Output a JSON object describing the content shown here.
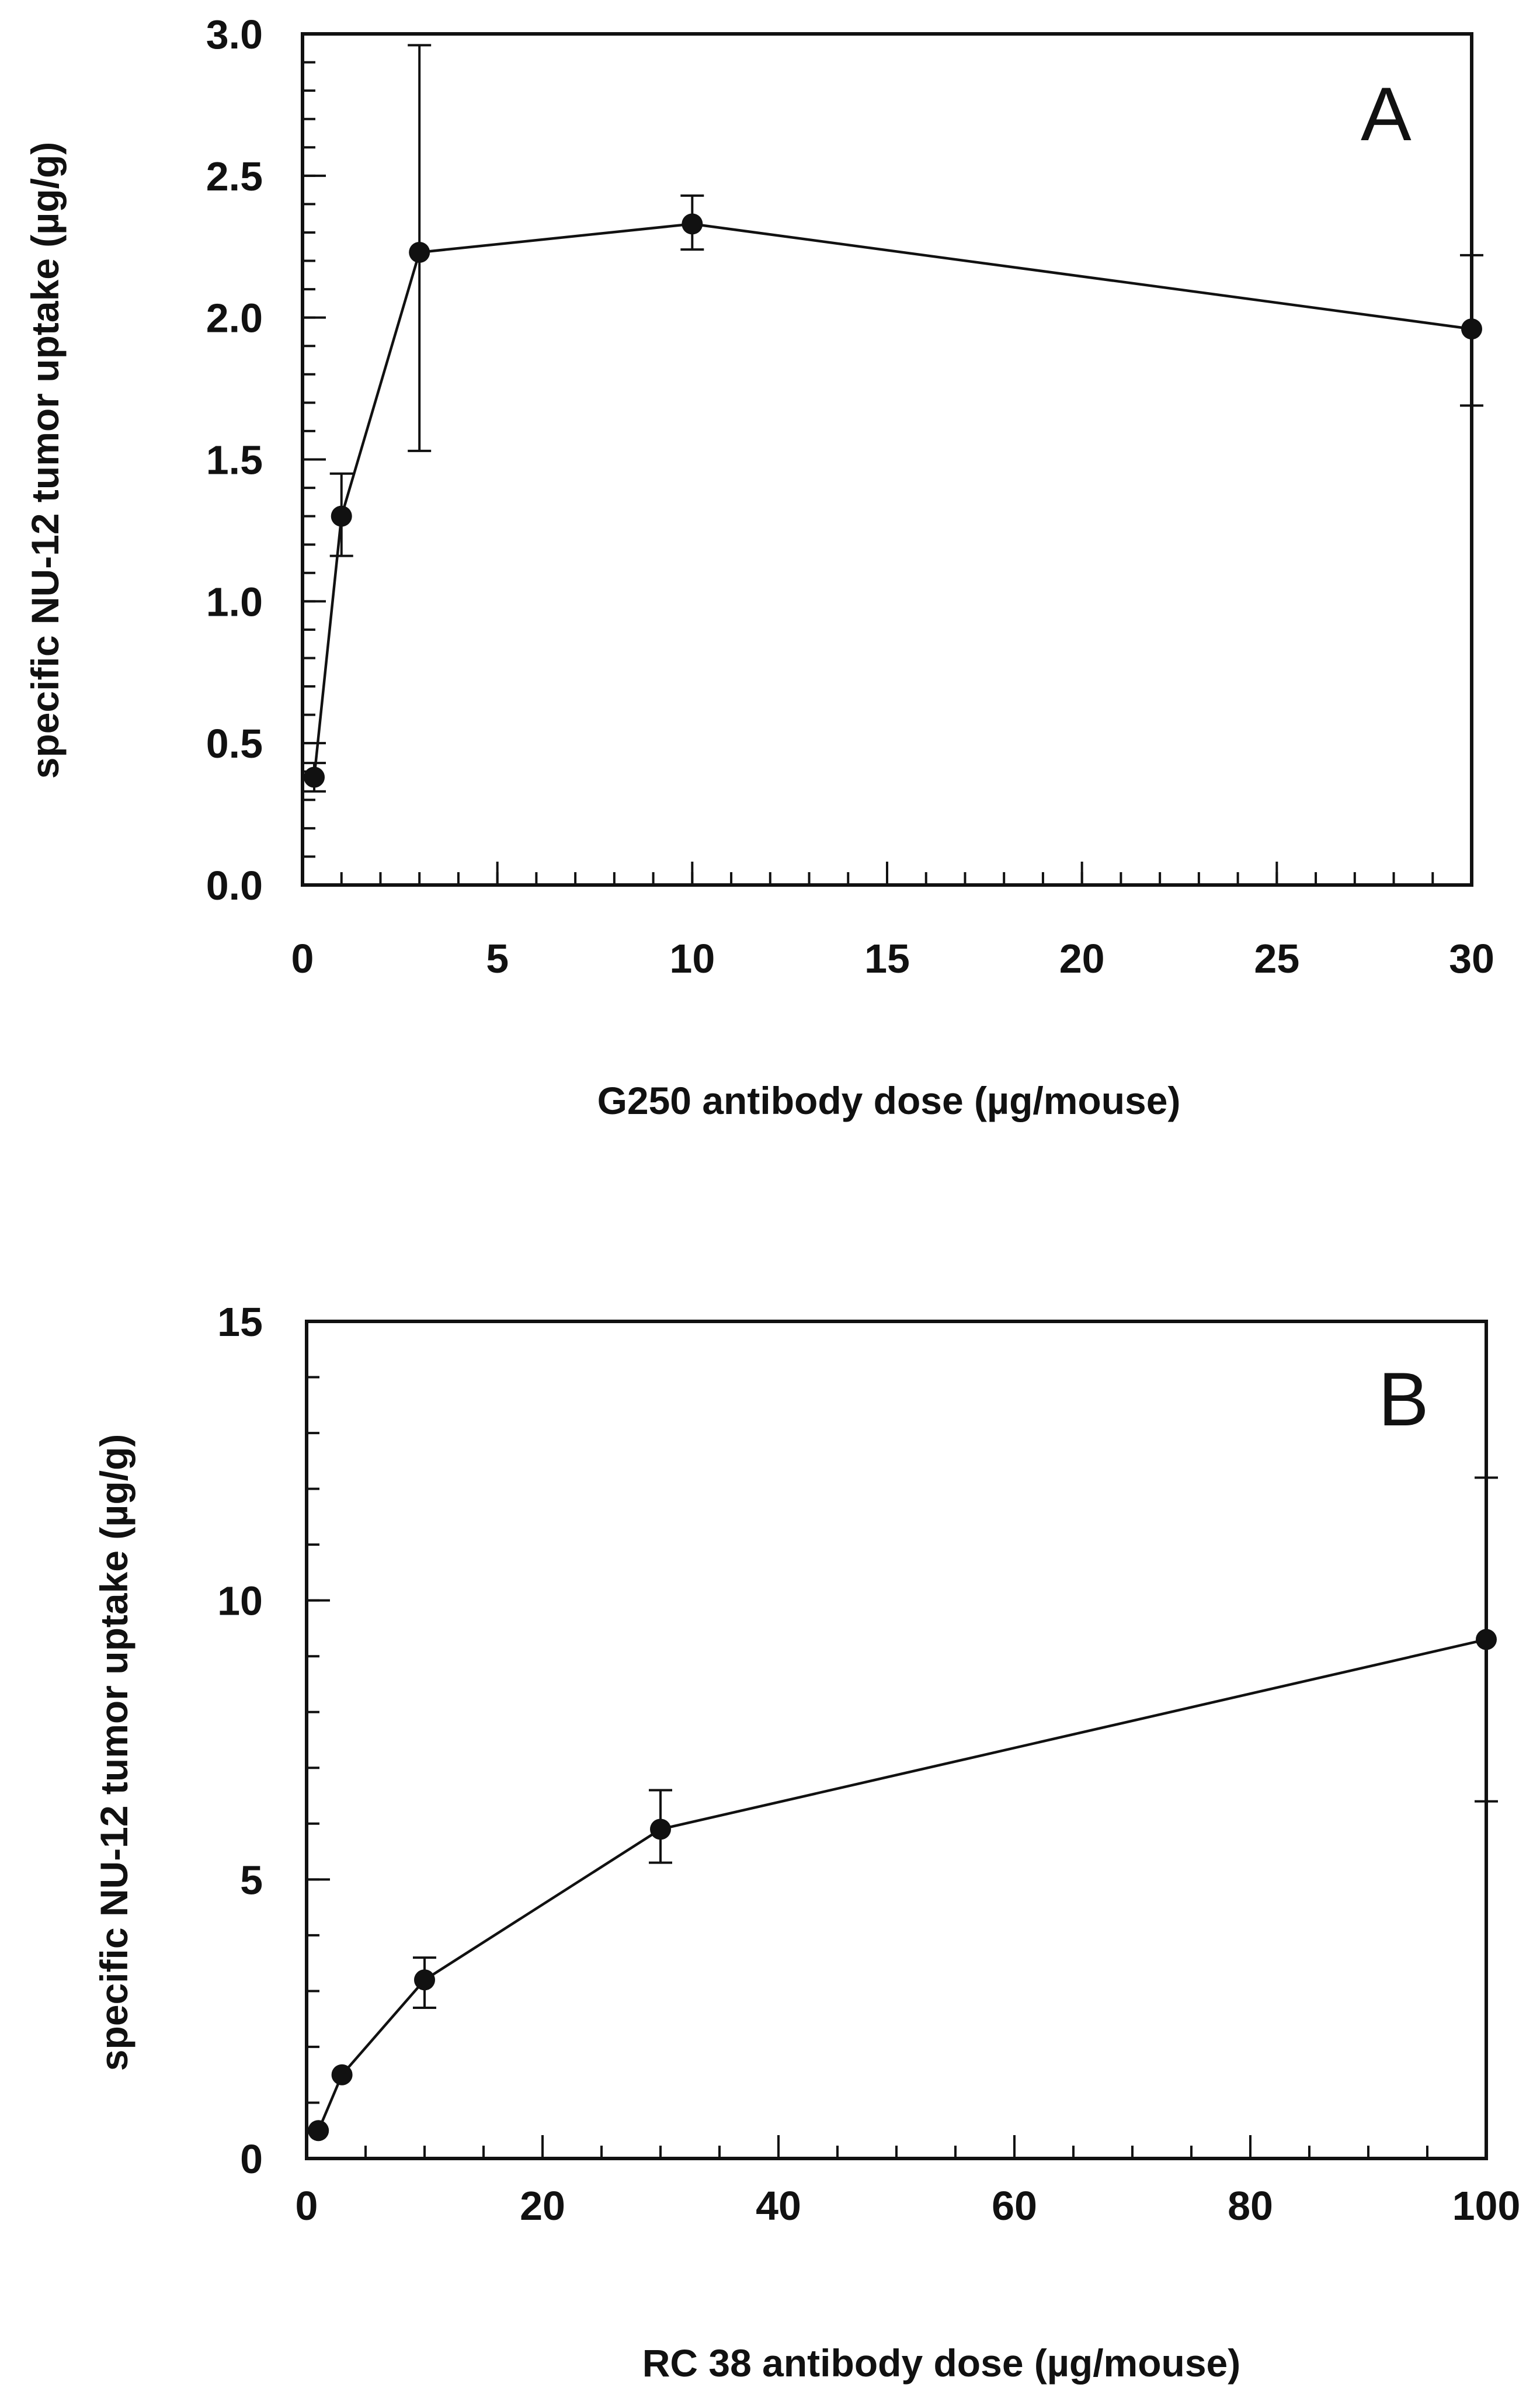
{
  "chart_data": [
    {
      "type": "line",
      "panel_label": "A",
      "xlabel": "G250 antibody dose (µg/mouse)",
      "ylabel": "specific NU-12 tumor uptake (µg/g)",
      "xlim": [
        0,
        30
      ],
      "ylim": [
        0,
        3.0
      ],
      "x_ticks": [
        "0",
        "5",
        "10",
        "15",
        "20",
        "25",
        "30"
      ],
      "y_ticks": [
        "0.0",
        "0.5",
        "1.0",
        "1.5",
        "2.0",
        "2.5",
        "3.0"
      ],
      "grid": false,
      "series": [
        {
          "x": [
            0.3,
            1,
            3,
            10,
            30
          ],
          "y": [
            0.38,
            1.3,
            2.23,
            2.33,
            1.96
          ],
          "err_upper": [
            0.43,
            1.45,
            2.96,
            2.43,
            2.22
          ],
          "err_lower": [
            0.33,
            1.16,
            1.53,
            2.24,
            1.69
          ]
        }
      ]
    },
    {
      "type": "line",
      "panel_label": "B",
      "xlabel": "RC 38 antibody dose (µg/mouse)",
      "ylabel": "specific NU-12 tumor uptake (µg/g)",
      "xlim": [
        0,
        100
      ],
      "ylim": [
        0,
        15
      ],
      "x_ticks": [
        "0",
        "20",
        "40",
        "60",
        "80",
        "100"
      ],
      "y_ticks": [
        "0",
        "5",
        "10",
        "15"
      ],
      "grid": false,
      "series": [
        {
          "x": [
            1,
            3,
            10,
            30,
            100
          ],
          "y": [
            0.5,
            1.5,
            3.2,
            5.9,
            9.3
          ],
          "err_upper": [
            0.5,
            1.5,
            3.6,
            6.6,
            12.2
          ],
          "err_lower": [
            0.5,
            1.5,
            2.7,
            5.3,
            6.4
          ]
        }
      ]
    }
  ]
}
